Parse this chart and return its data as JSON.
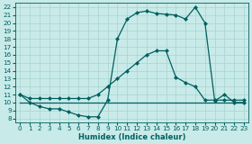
{
  "background_color": "#c8eae8",
  "grid_color": "#a8d4d0",
  "line_color": "#006060",
  "xlabel": "Humidex (Indice chaleur)",
  "xlim": [
    -0.5,
    23.5
  ],
  "ylim": [
    7.5,
    22.5
  ],
  "xticks": [
    0,
    1,
    2,
    3,
    4,
    5,
    6,
    7,
    8,
    9,
    10,
    11,
    12,
    13,
    14,
    15,
    16,
    17,
    18,
    19,
    20,
    21,
    22,
    23
  ],
  "yticks": [
    8,
    9,
    10,
    11,
    12,
    13,
    14,
    15,
    16,
    17,
    18,
    19,
    20,
    21,
    22
  ],
  "line1_x": [
    0,
    1,
    2,
    3,
    4,
    5,
    6,
    7,
    8,
    9,
    10,
    11,
    12,
    13,
    14,
    15,
    16,
    17,
    18,
    19,
    20,
    21,
    22,
    23
  ],
  "line1_y": [
    11,
    10,
    9.5,
    9.2,
    9.2,
    8.8,
    8.4,
    8.2,
    8.2,
    10.3,
    18.0,
    20.5,
    21.3,
    21.5,
    21.2,
    21.1,
    21.0,
    20.5,
    22.0,
    20.0,
    10.2,
    11.0,
    10.0,
    10.0
  ],
  "line2_x": [
    0,
    1,
    2,
    3,
    4,
    5,
    6,
    7,
    8,
    9,
    10,
    11,
    12,
    13,
    14,
    15,
    16,
    17,
    18,
    19,
    20,
    21,
    22,
    23
  ],
  "line2_y": [
    11,
    10.5,
    10.5,
    10.5,
    10.5,
    10.5,
    10.5,
    10.5,
    11.0,
    12.0,
    13.0,
    14.0,
    15.0,
    16.0,
    16.5,
    16.5,
    13.2,
    12.5,
    12.0,
    10.3,
    10.3,
    10.3,
    10.3,
    10.3
  ],
  "line3_x": [
    0,
    1,
    2,
    3,
    4,
    5,
    6,
    7,
    8,
    9,
    10,
    11,
    12,
    13,
    14,
    15,
    16,
    17,
    18,
    19,
    20,
    21,
    22,
    23
  ],
  "line3_y": [
    10,
    10,
    10,
    10,
    10,
    10,
    10,
    10,
    10,
    10,
    10,
    10,
    10,
    10,
    10,
    10,
    10,
    10,
    10,
    10,
    10,
    10,
    10,
    10
  ],
  "marker_size": 2.5,
  "line_width": 0.9,
  "tick_fontsize": 5.2,
  "xlabel_fontsize": 6.0
}
